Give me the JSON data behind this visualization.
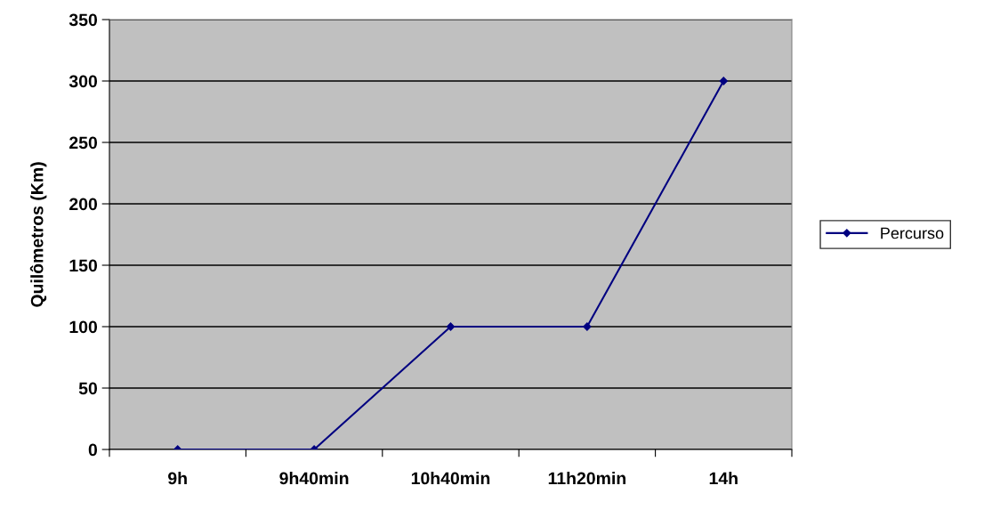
{
  "chart_data": {
    "type": "line",
    "ylabel": "Quilômetros (Km)",
    "categories": [
      "9h",
      "9h40min",
      "10h40min",
      "11h20min",
      "14h"
    ],
    "series": [
      {
        "name": "Percurso",
        "color": "#000080",
        "values": [
          0,
          0,
          100,
          100,
          300
        ]
      }
    ],
    "ylim": [
      0,
      350
    ],
    "yticks": [
      0,
      50,
      100,
      150,
      200,
      250,
      300,
      350
    ],
    "grid": "y",
    "legend": "right",
    "marker": "diamond",
    "line_style": "solid"
  }
}
